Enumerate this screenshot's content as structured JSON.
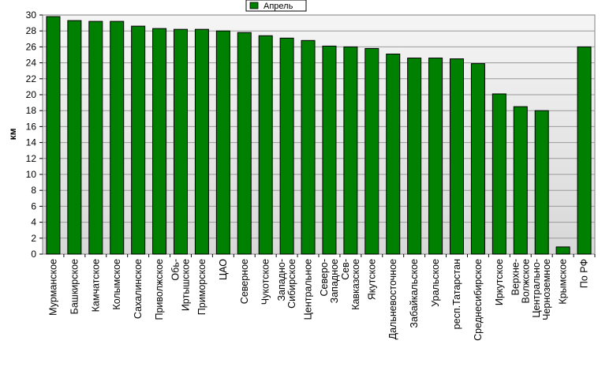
{
  "chart_data": {
    "type": "bar",
    "ylabel": "км",
    "ylim": [
      0,
      30
    ],
    "ytick_step": 2,
    "grid": true,
    "legend_position": "top-center",
    "series": [
      {
        "name": "Апрель",
        "color": "#008000",
        "values": [
          29.8,
          29.3,
          29.2,
          29.2,
          28.6,
          28.3,
          28.2,
          28.2,
          28.0,
          27.8,
          27.4,
          27.1,
          26.8,
          26.1,
          26.0,
          25.8,
          25.1,
          24.6,
          24.6,
          24.5,
          23.9,
          20.1,
          18.5,
          18.0,
          0.9,
          26.0
        ]
      }
    ],
    "categories": [
      "Мурманское",
      "Башкирское",
      "Камчатское",
      "Колымское",
      "Сахалинское",
      "Приволжское",
      "Обь-Иртышское",
      "Приморское",
      "ЦАО",
      "Северное",
      "Чукотское",
      "Западно-Сибирское",
      "Центральное",
      "Северо-Западное",
      "Сев-Кавказское",
      "Якутское",
      "Дальневосточное",
      "Забайкальское",
      "Уральское",
      "респ.Татарстан",
      "Среднесибирское",
      "Иркутское",
      "Верхне-Волжское",
      "Центрально-Черноземное",
      "Крымское",
      "По РФ"
    ]
  }
}
